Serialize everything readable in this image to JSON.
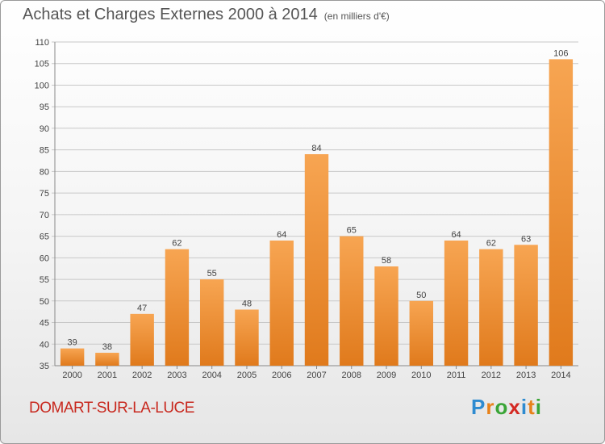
{
  "title": "Achats et Charges Externes 2000 à 2014",
  "unit_label": "(en milliers d'€)",
  "commune": "DOMART-SUR-LA-LUCE",
  "logo": {
    "text": "Proxiti",
    "colors": [
      "#2e8bd0",
      "#e8821a",
      "#3aa537",
      "#d42a24",
      "#2e8bd0",
      "#e8821a",
      "#3aa537"
    ]
  },
  "chart_data": {
    "type": "bar",
    "categories": [
      "2000",
      "2001",
      "2002",
      "2003",
      "2004",
      "2005",
      "2006",
      "2007",
      "2008",
      "2009",
      "2010",
      "2011",
      "2012",
      "2013",
      "2014"
    ],
    "values": [
      39,
      38,
      47,
      62,
      55,
      48,
      64,
      84,
      65,
      58,
      50,
      64,
      62,
      63,
      106
    ],
    "ylim": [
      35,
      110
    ],
    "yticks": [
      35,
      40,
      45,
      50,
      55,
      60,
      65,
      70,
      75,
      80,
      85,
      90,
      95,
      100,
      105,
      110
    ],
    "grid": true,
    "colors": {
      "bar_light": "#f7a552",
      "bar_dark": "#e07a1c"
    }
  }
}
